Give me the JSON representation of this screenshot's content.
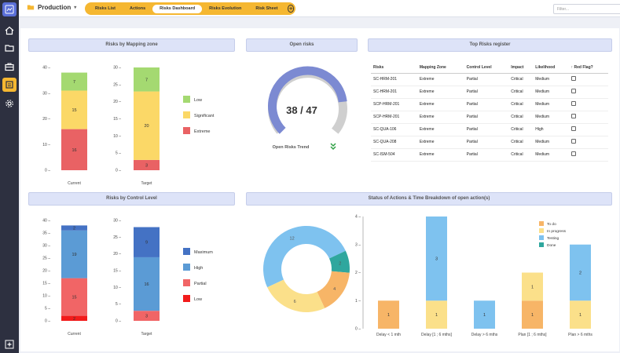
{
  "app": {
    "title": "Production",
    "filter_placeholder": "Filter..."
  },
  "tabs": [
    {
      "label": "Risks List",
      "active": false
    },
    {
      "label": "Actions",
      "active": false
    },
    {
      "label": "Risks Dashboard",
      "active": true
    },
    {
      "label": "Risks Evolution",
      "active": false
    },
    {
      "label": "Risk Sheet",
      "active": false
    }
  ],
  "nav_icons": [
    "home-icon",
    "folder-icon",
    "briefcase-icon",
    "tasks-icon",
    "settings-icon",
    "add-icon"
  ],
  "panels": {
    "mapping": "Risks by Mapping zone",
    "open": "Open risks",
    "top": "Top Risks register",
    "control": "Risks by Control Level",
    "status": "Status of Actions & Time Breakdown of open action(s)"
  },
  "open_risks": {
    "value": "38 / 47",
    "trend_label": "Open Risks Trend",
    "open": 38,
    "total": 47
  },
  "top_risks": {
    "columns": [
      "Risks",
      "Mapping Zone",
      "Control Level",
      "Impact",
      "Likelihood",
      "↑ Red Flag?"
    ],
    "rows": [
      [
        "SC-HRM-201",
        "Extreme",
        "Partial",
        "Critical",
        "Medium"
      ],
      [
        "SC-HRM-201",
        "Extreme",
        "Partial",
        "Critical",
        "Medium"
      ],
      [
        "SCP-HRM-201",
        "Extreme",
        "Partial",
        "Critical",
        "Medium"
      ],
      [
        "SCP-HRM-201",
        "Extreme",
        "Partial",
        "Critical",
        "Medium"
      ],
      [
        "SC-QUA-106",
        "Extreme",
        "Partial",
        "Critical",
        "High"
      ],
      [
        "SC-QUA-208",
        "Extreme",
        "Partial",
        "Critical",
        "Medium"
      ],
      [
        "SC-ISM-504",
        "Extreme",
        "Partial",
        "Critical",
        "Medium"
      ]
    ]
  },
  "chart_data": [
    {
      "id": "mapping",
      "type": "bar",
      "stacked": true,
      "categories": [
        "Current",
        "Target"
      ],
      "series": [
        {
          "name": "Extreme",
          "color": "#e96264",
          "values": [
            16,
            3
          ]
        },
        {
          "name": "Significant",
          "color": "#fbd867",
          "values": [
            15,
            20
          ]
        },
        {
          "name": "Low",
          "color": "#a4d971",
          "values": [
            7,
            7
          ]
        }
      ],
      "ylim": [
        0,
        40
      ],
      "yticks": [
        0,
        10,
        20,
        30,
        40
      ],
      "ylim2": [
        0,
        30
      ],
      "yticks2": [
        0,
        5,
        10,
        15,
        20,
        25,
        30
      ],
      "legend": "right"
    },
    {
      "id": "control",
      "type": "bar",
      "stacked": true,
      "categories": [
        "Current",
        "Target"
      ],
      "series": [
        {
          "name": "Low",
          "color": "#f21b1b",
          "values": [
            2,
            0
          ]
        },
        {
          "name": "Partial",
          "color": "#f16566",
          "values": [
            15,
            3
          ]
        },
        {
          "name": "High",
          "color": "#5b9bd5",
          "values": [
            19,
            16
          ]
        },
        {
          "name": "Maximum",
          "color": "#4472c4",
          "values": [
            2,
            9
          ]
        }
      ],
      "ylim": [
        0,
        40
      ],
      "yticks": [
        0,
        5,
        10,
        15,
        20,
        25,
        30,
        35,
        40
      ],
      "ylim2": [
        0,
        30
      ],
      "yticks2": [
        0,
        5,
        10,
        15,
        20,
        25,
        30
      ],
      "legend": "right"
    },
    {
      "id": "status_donut",
      "type": "pie",
      "donut": true,
      "slices": [
        {
          "name": "Testing",
          "value": 12,
          "color": "#7ec2ef"
        },
        {
          "name": "Done",
          "value": 2,
          "color": "#2fa79e"
        },
        {
          "name": "To do",
          "value": 4,
          "color": "#f7b567"
        },
        {
          "name": "In progress",
          "value": 6,
          "color": "#fbe08a"
        }
      ]
    },
    {
      "id": "time_breakdown",
      "type": "bar",
      "stacked": true,
      "categories": [
        "Delay < 1 mth",
        "Delay [1 ; 6 mths]",
        "Delay > 6 mths",
        "Plan [1 ; 6 mths]",
        "Plan > 6 mths"
      ],
      "series": [
        {
          "name": "To do",
          "color": "#f7b567",
          "values": [
            1,
            0,
            0,
            1,
            0
          ]
        },
        {
          "name": "In progress",
          "color": "#fbe08a",
          "values": [
            0,
            1,
            0,
            1,
            1
          ]
        },
        {
          "name": "Testing",
          "color": "#7ec2ef",
          "values": [
            0,
            3,
            1,
            0,
            2
          ]
        },
        {
          "name": "Done",
          "color": "#2fa79e",
          "values": [
            0,
            0,
            0,
            0,
            0
          ]
        }
      ],
      "ylim": [
        0,
        4
      ],
      "yticks": [
        0,
        1,
        2,
        3,
        4
      ],
      "legend": "top-right"
    }
  ]
}
